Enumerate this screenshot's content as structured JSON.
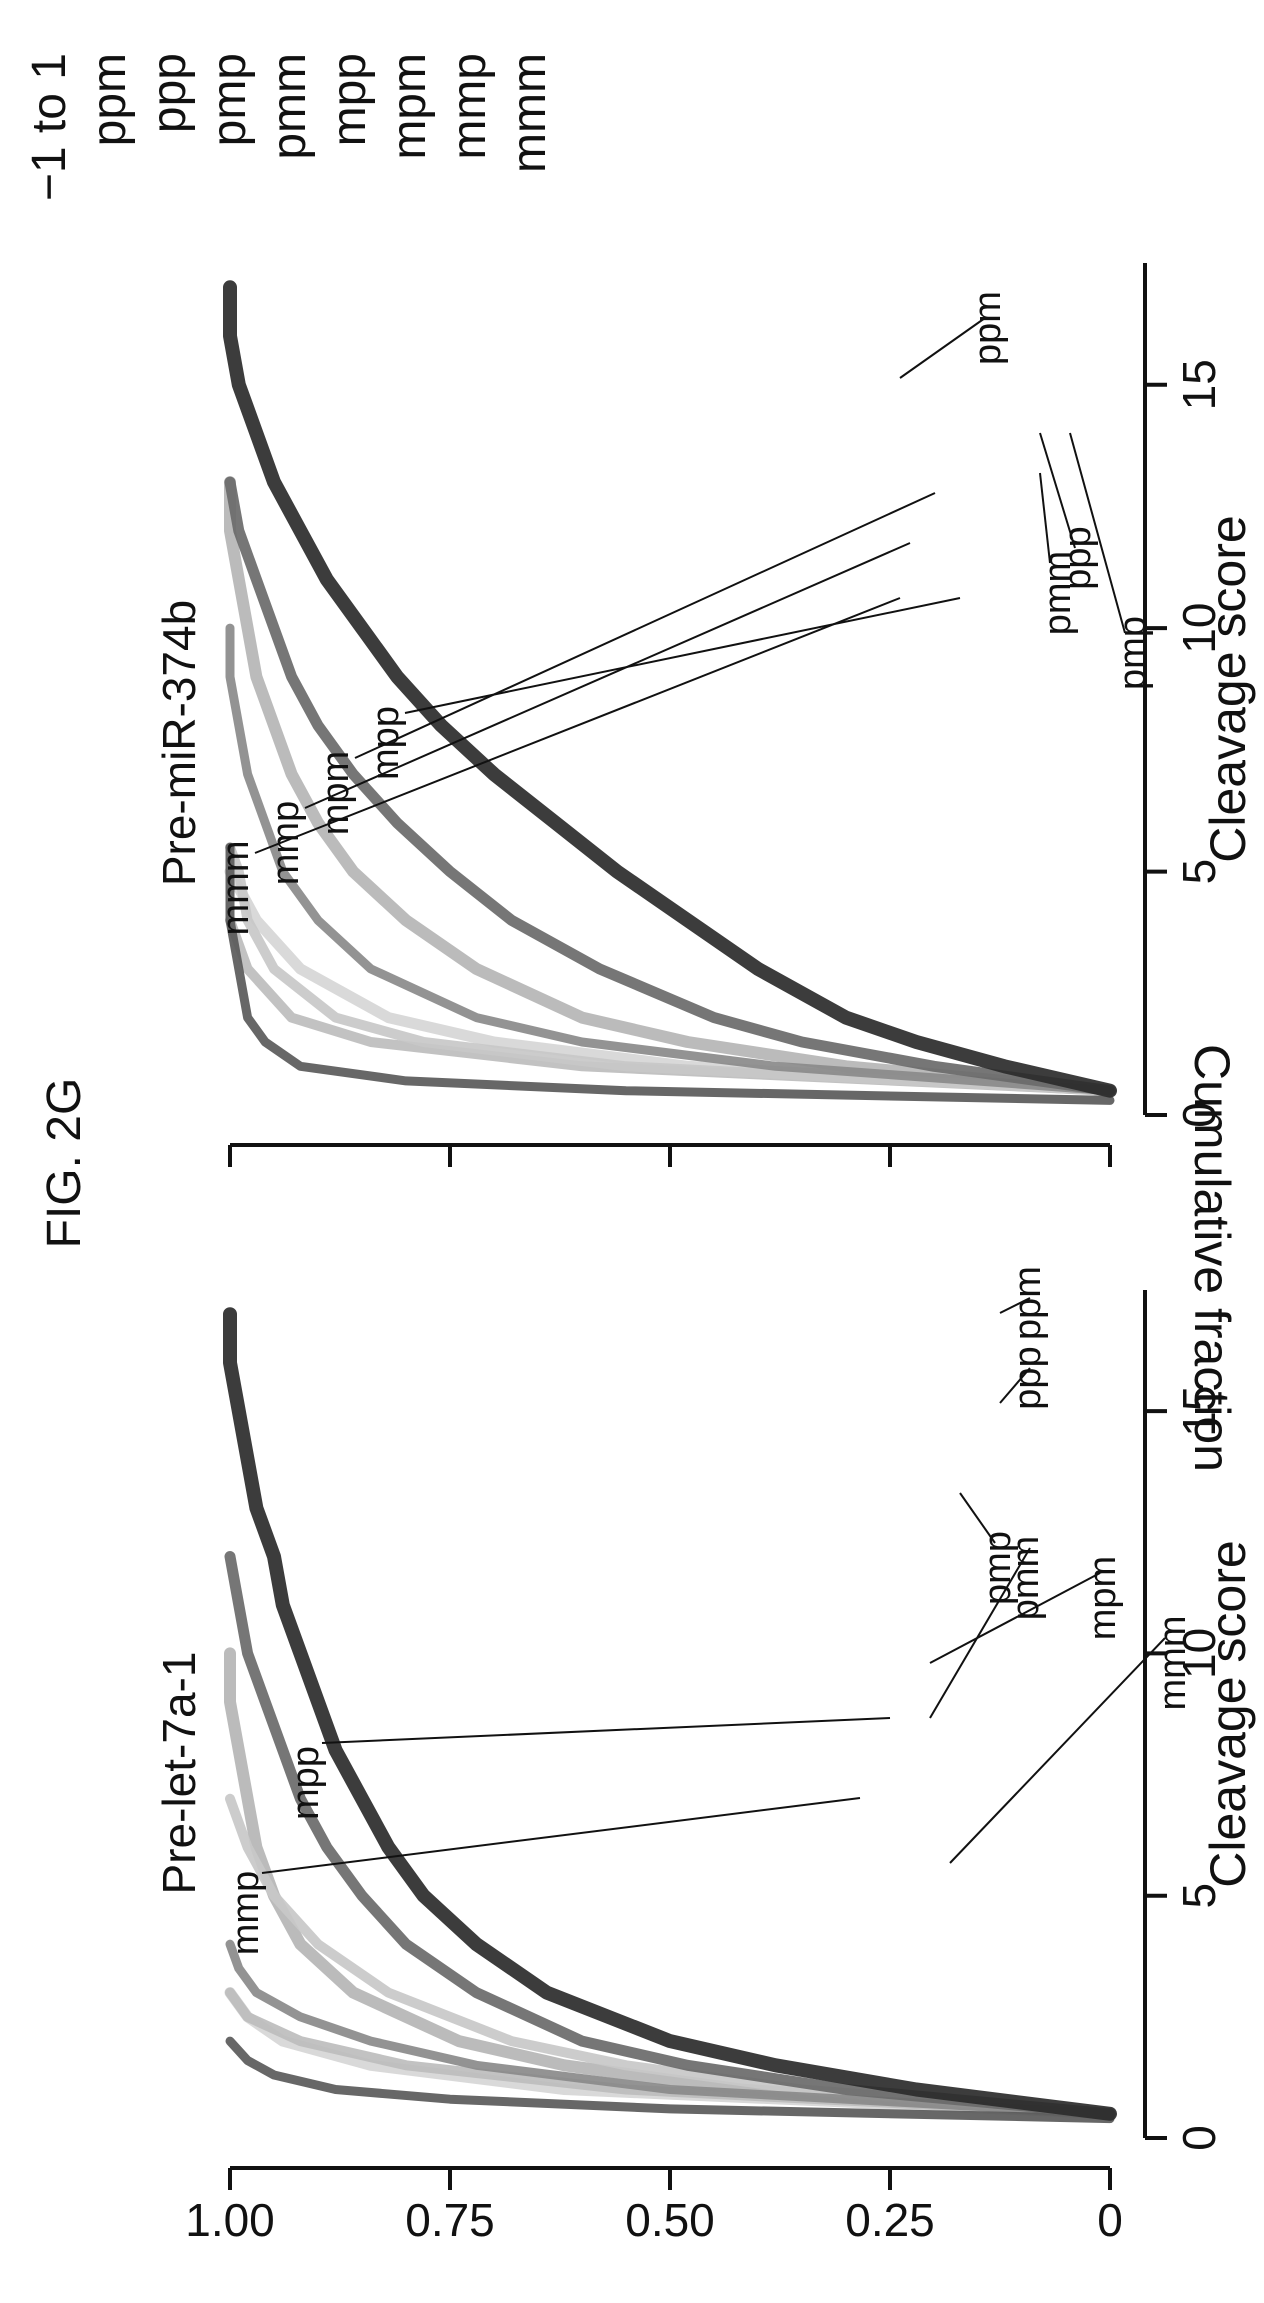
{
  "figure_title": "FIG. 2G",
  "y_axis_label": "Cumulative fraction",
  "legend": {
    "title": "−1 to 1",
    "items": [
      "ppm",
      "ppp",
      "pmp",
      "pmm",
      "mpp",
      "mpm",
      "mmp",
      "mmm"
    ]
  },
  "colors": {
    "ink": "#111111",
    "ppm": "#2b2b2b",
    "ppp": "#6a6a6a",
    "pmp": "#b5b5b5",
    "pmm": "#8a8a8a",
    "mpp": "#c8c8c8",
    "mpm": "#d6d6d6",
    "mmp": "#bdbdbd",
    "mmm": "#5a5a5a"
  },
  "chart_data": [
    {
      "type": "line",
      "title": "Pre-let-7a-1",
      "xlabel": "Cleavage score",
      "ylabel": "Cumulative fraction",
      "xlim": [
        0,
        17.5
      ],
      "ylim": [
        0,
        1
      ],
      "xticks": [
        0,
        5,
        10,
        15
      ],
      "yticks": [
        0,
        0.25,
        0.5,
        0.75,
        1.0
      ],
      "ytick_labels": [
        "0",
        "0.25",
        "0.50",
        "0.75",
        "1.00"
      ],
      "grid": false,
      "legend": "right",
      "series": [
        {
          "name": "ppm",
          "x": [
            0.5,
            1,
            1.5,
            2,
            3,
            4,
            5,
            6,
            7,
            8,
            9,
            10,
            11,
            12,
            13,
            14,
            15,
            16,
            17
          ],
          "y": [
            0,
            0.22,
            0.38,
            0.5,
            0.64,
            0.72,
            0.78,
            0.82,
            0.85,
            0.88,
            0.9,
            0.92,
            0.94,
            0.95,
            0.97,
            0.98,
            0.99,
            1,
            1
          ]
        },
        {
          "name": "ppp",
          "x": [
            0.5,
            1,
            1.5,
            2,
            3,
            4,
            5,
            6,
            7,
            8,
            9,
            10,
            11,
            12
          ],
          "y": [
            0,
            0.3,
            0.48,
            0.6,
            0.72,
            0.8,
            0.85,
            0.89,
            0.92,
            0.94,
            0.96,
            0.98,
            0.99,
            1
          ]
        },
        {
          "name": "pmp",
          "x": [
            0.5,
            1,
            1.5,
            2,
            3,
            4,
            5,
            6,
            7,
            8,
            9,
            10
          ],
          "y": [
            0,
            0.42,
            0.62,
            0.74,
            0.86,
            0.92,
            0.95,
            0.97,
            0.98,
            0.99,
            1,
            1
          ]
        },
        {
          "name": "pmm",
          "x": [
            0.5,
            1,
            1.5,
            2,
            2.5,
            3,
            3.5,
            4
          ],
          "y": [
            0,
            0.5,
            0.72,
            0.84,
            0.92,
            0.97,
            0.99,
            1
          ]
        },
        {
          "name": "mpp",
          "x": [
            0.5,
            1,
            1.5,
            2,
            3,
            4,
            5,
            6,
            7
          ],
          "y": [
            0,
            0.35,
            0.55,
            0.68,
            0.82,
            0.9,
            0.95,
            0.98,
            1
          ]
        },
        {
          "name": "mpm",
          "x": [
            0.5,
            1,
            1.5,
            2,
            2.5,
            3
          ],
          "y": [
            0,
            0.62,
            0.84,
            0.94,
            0.98,
            1
          ]
        },
        {
          "name": "mmp",
          "x": [
            0.5,
            1,
            1.5,
            2,
            2.5,
            3
          ],
          "y": [
            0,
            0.55,
            0.8,
            0.92,
            0.98,
            1
          ]
        },
        {
          "name": "mmm",
          "x": [
            0.4,
            0.6,
            0.8,
            1,
            1.3,
            1.6,
            2
          ],
          "y": [
            0,
            0.5,
            0.75,
            0.88,
            0.95,
            0.98,
            1
          ]
        }
      ]
    },
    {
      "type": "line",
      "title": "Pre-miR-374b",
      "xlabel": "Cleavage score",
      "ylabel": "Cumulative fraction",
      "xlim": [
        0,
        17.5
      ],
      "ylim": [
        0,
        1
      ],
      "xticks": [
        0,
        5,
        10,
        15
      ],
      "yticks": [
        0,
        0.25,
        0.5,
        0.75,
        1.0
      ],
      "ytick_labels": [
        "0",
        "0.25",
        "0.50",
        "0.75",
        "1.00"
      ],
      "grid": false,
      "legend": "right",
      "series": [
        {
          "name": "ppm",
          "x": [
            0.5,
            1,
            1.5,
            2,
            3,
            4,
            5,
            6,
            7,
            8,
            9,
            10,
            11,
            12,
            13,
            14,
            15,
            16,
            17
          ],
          "y": [
            0,
            0.12,
            0.22,
            0.3,
            0.4,
            0.48,
            0.56,
            0.63,
            0.7,
            0.76,
            0.81,
            0.85,
            0.89,
            0.92,
            0.95,
            0.97,
            0.99,
            1,
            1
          ]
        },
        {
          "name": "ppp",
          "x": [
            0.5,
            1,
            1.5,
            2,
            3,
            4,
            5,
            6,
            7,
            8,
            9,
            10,
            11,
            12,
            13
          ],
          "y": [
            0,
            0.2,
            0.35,
            0.45,
            0.58,
            0.68,
            0.75,
            0.81,
            0.86,
            0.9,
            0.93,
            0.95,
            0.97,
            0.99,
            1
          ]
        },
        {
          "name": "pmp",
          "x": [
            0.5,
            1,
            1.5,
            2,
            3,
            4,
            5,
            6,
            7,
            8,
            9,
            10,
            11,
            12,
            13
          ],
          "y": [
            0,
            0.3,
            0.48,
            0.6,
            0.72,
            0.8,
            0.86,
            0.9,
            0.93,
            0.95,
            0.97,
            0.98,
            0.99,
            1,
            1
          ]
        },
        {
          "name": "pmm",
          "x": [
            0.5,
            1,
            1.5,
            2,
            3,
            4,
            5,
            6,
            7,
            8,
            9,
            10
          ],
          "y": [
            0,
            0.38,
            0.6,
            0.72,
            0.84,
            0.9,
            0.94,
            0.96,
            0.98,
            0.99,
            1,
            1
          ]
        },
        {
          "name": "mpp",
          "x": [
            0.5,
            1,
            1.5,
            2,
            3,
            4,
            5,
            5.5
          ],
          "y": [
            0,
            0.55,
            0.78,
            0.88,
            0.95,
            0.98,
            0.99,
            1
          ]
        },
        {
          "name": "mpm",
          "x": [
            0.5,
            1,
            1.5,
            2,
            3,
            4,
            5
          ],
          "y": [
            0,
            0.48,
            0.7,
            0.82,
            0.92,
            0.97,
            1
          ]
        },
        {
          "name": "mmp",
          "x": [
            0.5,
            1,
            1.5,
            2,
            3,
            4
          ],
          "y": [
            0,
            0.6,
            0.84,
            0.93,
            0.98,
            1
          ]
        },
        {
          "name": "mmm",
          "x": [
            0.3,
            0.5,
            0.7,
            1,
            1.5,
            2,
            3,
            4,
            5,
            5.5
          ],
          "y": [
            0,
            0.55,
            0.8,
            0.92,
            0.96,
            0.98,
            0.99,
            1,
            1,
            1
          ]
        }
      ]
    }
  ]
}
